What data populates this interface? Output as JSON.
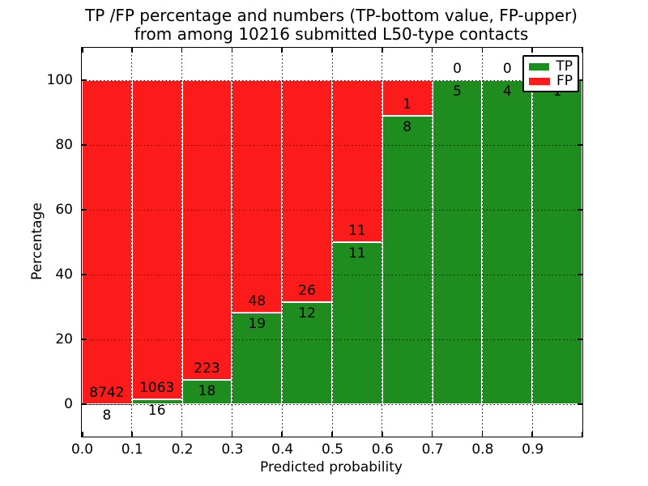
{
  "figure": {
    "title_line1": "TP /FP percentage and numbers (TP-bottom value, FP-upper)",
    "title_line2": "from among 10216 submitted L50-type contacts",
    "xlabel": "Predicted probability",
    "ylabel": "Percentage"
  },
  "legend": {
    "items": [
      {
        "label": "TP",
        "color": "#1e8c1e"
      },
      {
        "label": "FP",
        "color": "#fb1b1b"
      }
    ],
    "position": "upper right"
  },
  "chart_data": {
    "type": "bar",
    "stacked": true,
    "title": "TP /FP percentage and numbers (TP-bottom value, FP-upper) from among 10216 submitted L50-type contacts",
    "xlabel": "Predicted probability",
    "ylabel": "Percentage",
    "total_submitted": 10216,
    "bins": [
      [
        0.0,
        0.1
      ],
      [
        0.1,
        0.2
      ],
      [
        0.2,
        0.3
      ],
      [
        0.3,
        0.4
      ],
      [
        0.4,
        0.5
      ],
      [
        0.5,
        0.6
      ],
      [
        0.6,
        0.7
      ],
      [
        0.7,
        0.8
      ],
      [
        0.8,
        0.9
      ],
      [
        0.9,
        1.0
      ]
    ],
    "series": [
      {
        "name": "TP",
        "color": "#1e8c1e",
        "counts": [
          8,
          16,
          18,
          19,
          12,
          11,
          8,
          5,
          4,
          1
        ],
        "percentages": [
          0.09,
          1.48,
          7.47,
          28.36,
          31.58,
          50.0,
          88.89,
          100.0,
          100.0,
          100.0
        ]
      },
      {
        "name": "FP",
        "color": "#fb1b1b",
        "counts": [
          8742,
          1063,
          223,
          48,
          26,
          11,
          1,
          0,
          0,
          0
        ],
        "percentages": [
          99.91,
          98.52,
          92.53,
          71.64,
          68.42,
          50.0,
          11.11,
          0.0,
          0.0,
          0.0
        ]
      }
    ],
    "xlim": [
      0.0,
      1.0
    ],
    "ylim": [
      -10,
      110
    ],
    "xticks": [
      0.0,
      0.1,
      0.2,
      0.3,
      0.4,
      0.5,
      0.6,
      0.7,
      0.8,
      0.9,
      1.0
    ],
    "xtick_labels": [
      "0.0",
      "0.1",
      "0.2",
      "0.3",
      "0.4",
      "0.5",
      "0.6",
      "0.7",
      "0.8",
      "0.9",
      ""
    ],
    "yticks": [
      0,
      20,
      40,
      60,
      80,
      100
    ],
    "ytick_labels": [
      "0",
      "20",
      "40",
      "60",
      "80",
      "100"
    ],
    "xgridlines": [
      0.1,
      0.2,
      0.3,
      0.4,
      0.5,
      0.6,
      0.7,
      0.8,
      0.9
    ],
    "ygridlines": [
      0,
      20,
      40,
      60,
      80,
      100
    ],
    "grid": true,
    "legend_position": "upper right",
    "bar_edge_color": "#ffffff"
  }
}
